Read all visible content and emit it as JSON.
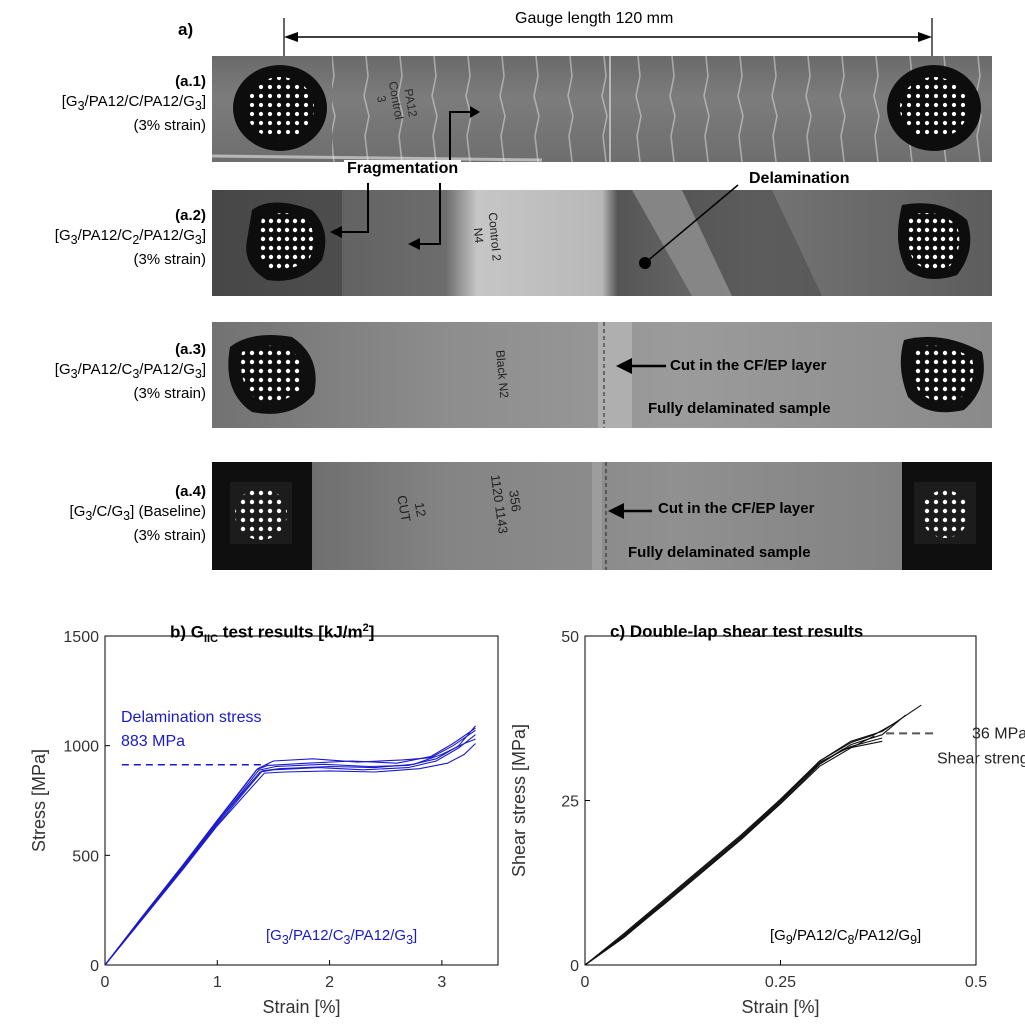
{
  "panel_a": {
    "label": "a)",
    "gauge": "Gauge length 120 mm",
    "samples": [
      {
        "id": "(a.1)",
        "layup": [
          "[G",
          "3",
          "/PA12/C/PA12/G",
          "3",
          "]"
        ],
        "strain": "(3% strain)",
        "marker": [
          "PA12",
          "Control",
          "3"
        ]
      },
      {
        "id": "(a.2)",
        "layup": [
          "[G",
          "3",
          "/PA12/C",
          "2",
          "/PA12/G",
          "3",
          "]"
        ],
        "strain": "(3% strain)",
        "marker": [
          "Control 2",
          "N4"
        ]
      },
      {
        "id": "(a.3)",
        "layup": [
          "[G",
          "3",
          "/PA12/C",
          "3",
          "/PA12/G",
          "3",
          "]"
        ],
        "strain": "(3% strain)",
        "marker": [
          "Black N2"
        ]
      },
      {
        "id": "(a.4)",
        "layup": [
          "[G",
          "3",
          "/C/G",
          "3",
          "] (Baseline)"
        ],
        "strain": "(3% strain)",
        "marker": [
          "12",
          "CUT",
          "356",
          "1120 1143"
        ]
      }
    ],
    "annotations": {
      "fragmentation": "Fragmentation",
      "delamination": "Delamination",
      "cut": "Cut in the CF/EP layer",
      "fully": "Fully delaminated sample"
    }
  },
  "chart_data": [
    {
      "type": "line",
      "title": "b) G",
      "title_sub": "IIC",
      "title_rest": " test results [kJ/m",
      "title_sup": "2",
      "title_end": "]",
      "xlabel": "Strain [%]",
      "ylabel": "Stress [MPa]",
      "xlim": [
        0,
        3.5
      ],
      "ylim": [
        0,
        1500
      ],
      "xticks": [
        "0",
        "1",
        "2",
        "3"
      ],
      "yticks": [
        "0",
        "500",
        "1000",
        "1500"
      ],
      "color": "#1a1acc",
      "annotation_lines": [
        "Delamination stress",
        "883 MPa"
      ],
      "annotation_value": 883,
      "layup": [
        "[G",
        "3",
        "/PA12/C",
        "3",
        "/PA12/G",
        "3",
        "]"
      ],
      "series": [
        {
          "x": [
            0,
            0.3,
            0.7,
            1.0,
            1.35,
            1.45,
            1.8,
            2.2,
            2.6,
            2.9,
            3.1,
            3.3
          ],
          "y": [
            0,
            200,
            460,
            660,
            890,
            910,
            920,
            930,
            920,
            950,
            1010,
            1080
          ]
        },
        {
          "x": [
            0,
            0.3,
            0.7,
            1.0,
            1.38,
            1.5,
            1.9,
            2.3,
            2.7,
            2.95,
            3.15,
            3.3
          ],
          "y": [
            0,
            195,
            450,
            650,
            880,
            890,
            900,
            890,
            900,
            930,
            990,
            1050
          ]
        },
        {
          "x": [
            0,
            0.3,
            0.7,
            1.0,
            1.4,
            1.55,
            2.0,
            2.4,
            2.75,
            3.0,
            3.2,
            3.3
          ],
          "y": [
            0,
            190,
            445,
            640,
            885,
            895,
            905,
            900,
            915,
            960,
            1010,
            1030
          ]
        },
        {
          "x": [
            0,
            0.3,
            0.7,
            1.0,
            1.36,
            1.5,
            1.85,
            2.25,
            2.65,
            2.9,
            3.1,
            3.3
          ],
          "y": [
            0,
            198,
            455,
            655,
            895,
            930,
            940,
            925,
            935,
            945,
            1000,
            1070
          ]
        },
        {
          "x": [
            0,
            0.3,
            0.7,
            1.0,
            1.42,
            1.6,
            2.0,
            2.4,
            2.8,
            3.05,
            3.2,
            3.3
          ],
          "y": [
            0,
            188,
            440,
            635,
            875,
            880,
            885,
            880,
            895,
            920,
            960,
            1010
          ]
        },
        {
          "x": [
            0,
            0.3,
            0.7,
            1.0,
            1.37,
            1.52,
            1.95,
            2.35,
            2.7,
            2.95,
            3.15,
            3.3
          ],
          "y": [
            0,
            193,
            452,
            648,
            888,
            905,
            915,
            905,
            910,
            940,
            1000,
            1090
          ]
        }
      ]
    },
    {
      "type": "line",
      "title": "c) Double-lap shear test results",
      "xlabel": "Strain [%]",
      "ylabel": "Shear stress [MPa]",
      "xlim": [
        0,
        0.5
      ],
      "ylim": [
        0,
        50
      ],
      "xticks": [
        "0",
        "0.25",
        "0.5"
      ],
      "yticks": [
        "0",
        "25",
        "50"
      ],
      "color": "#111111",
      "annotation_lines": [
        "36 MPa",
        "Shear strength"
      ],
      "annotation_value": 36,
      "layup": [
        "[G",
        "9",
        "/PA12/C",
        "8",
        "/PA12/G",
        "9",
        "]"
      ],
      "series": [
        {
          "x": [
            0,
            0.05,
            0.1,
            0.15,
            0.2,
            0.25,
            0.3,
            0.34,
            0.38,
            0.43
          ],
          "y": [
            0,
            4.5,
            9.5,
            14.5,
            19.5,
            25,
            31,
            34,
            35.5,
            39.5
          ]
        },
        {
          "x": [
            0,
            0.05,
            0.1,
            0.15,
            0.2,
            0.25,
            0.3,
            0.34,
            0.38,
            0.41
          ],
          "y": [
            0,
            4.2,
            9.2,
            14.2,
            19.2,
            24.6,
            30.5,
            33.5,
            35,
            38
          ]
        },
        {
          "x": [
            0,
            0.05,
            0.1,
            0.15,
            0.2,
            0.25,
            0.3,
            0.34,
            0.37,
            0.4
          ],
          "y": [
            0,
            4.8,
            9.8,
            14.8,
            19.8,
            25.2,
            31,
            33.8,
            35,
            37
          ]
        },
        {
          "x": [
            0,
            0.05,
            0.1,
            0.15,
            0.2,
            0.25,
            0.3,
            0.34,
            0.38
          ],
          "y": [
            0,
            4.4,
            9.3,
            14.3,
            19.3,
            24.8,
            30.8,
            33.2,
            34.5
          ]
        },
        {
          "x": [
            0,
            0.05,
            0.1,
            0.15,
            0.2,
            0.25,
            0.3,
            0.33,
            0.38
          ],
          "y": [
            0,
            4.6,
            9.6,
            14.6,
            19.6,
            25,
            30.6,
            32.8,
            34
          ]
        },
        {
          "x": [
            0,
            0.05,
            0.1,
            0.15,
            0.2,
            0.25,
            0.3,
            0.34,
            0.37
          ],
          "y": [
            0,
            4.3,
            9.1,
            14.1,
            19.1,
            24.5,
            30.2,
            33,
            34.8
          ]
        }
      ]
    }
  ]
}
